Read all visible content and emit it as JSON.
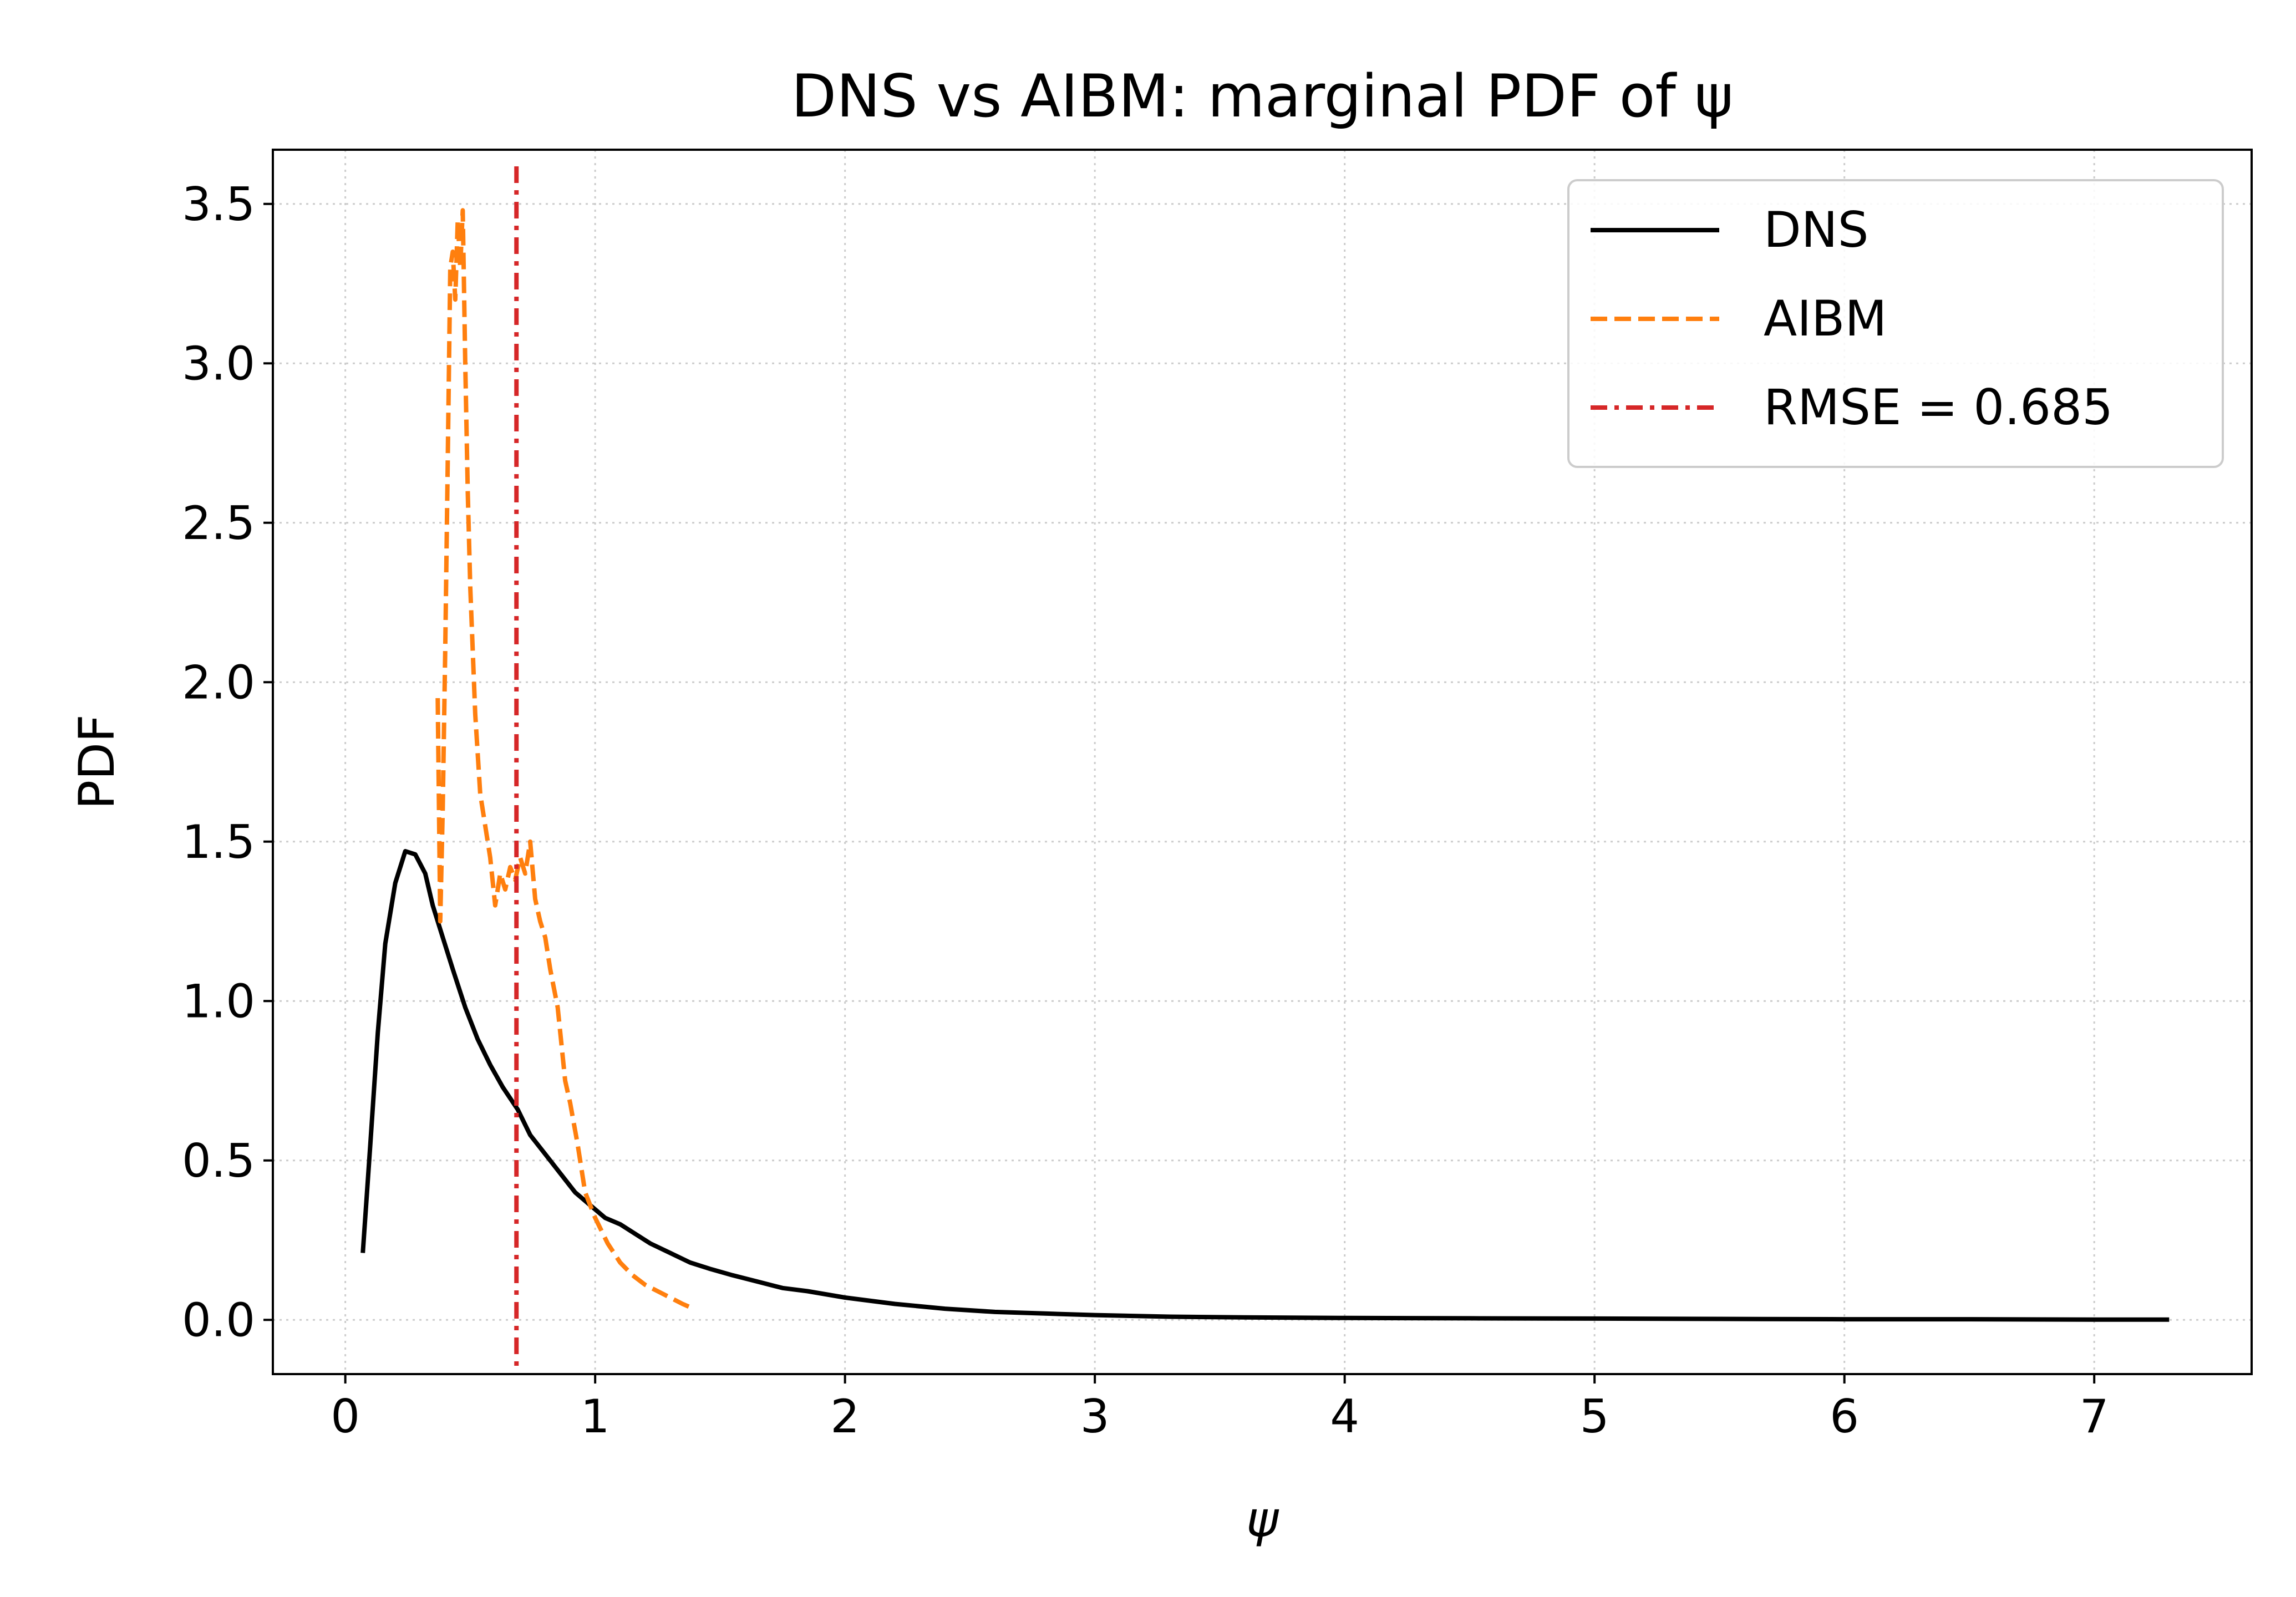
{
  "chart_data": {
    "type": "line",
    "title": "DNS vs AIBM: marginal PDF of ψ",
    "xlabel": "ψ",
    "ylabel": "PDF",
    "xlim": [
      -0.29,
      7.63
    ],
    "ylim": [
      -0.17,
      3.67
    ],
    "xticks": [
      0,
      1,
      2,
      3,
      4,
      5,
      6,
      7
    ],
    "xtick_labels": [
      "0",
      "1",
      "2",
      "3",
      "4",
      "5",
      "6",
      "7"
    ],
    "yticks": [
      0.0,
      0.5,
      1.0,
      1.5,
      2.0,
      2.5,
      3.0,
      3.5
    ],
    "ytick_labels": [
      "0.0",
      "0.5",
      "1.0",
      "1.5",
      "2.0",
      "2.5",
      "3.0",
      "3.5"
    ],
    "grid": true,
    "legend_position": "top-right",
    "series": [
      {
        "name": "DNS",
        "color": "#000000",
        "style": "solid",
        "x": [
          0.07,
          0.1,
          0.13,
          0.16,
          0.2,
          0.24,
          0.28,
          0.32,
          0.35,
          0.39,
          0.43,
          0.48,
          0.53,
          0.58,
          0.63,
          0.69,
          0.74,
          0.8,
          0.86,
          0.92,
          0.98,
          1.04,
          1.1,
          1.16,
          1.22,
          1.3,
          1.38,
          1.46,
          1.55,
          1.65,
          1.75,
          1.85,
          2.0,
          2.2,
          2.4,
          2.6,
          2.8,
          3.0,
          3.3,
          3.6,
          4.0,
          4.5,
          5.0,
          5.5,
          6.0,
          6.5,
          7.0,
          7.3
        ],
        "values": [
          0.21,
          0.55,
          0.9,
          1.18,
          1.37,
          1.47,
          1.46,
          1.4,
          1.3,
          1.2,
          1.1,
          0.98,
          0.88,
          0.8,
          0.73,
          0.66,
          0.58,
          0.52,
          0.46,
          0.4,
          0.36,
          0.32,
          0.3,
          0.27,
          0.24,
          0.21,
          0.18,
          0.16,
          0.14,
          0.12,
          0.1,
          0.09,
          0.07,
          0.05,
          0.035,
          0.025,
          0.02,
          0.015,
          0.01,
          0.008,
          0.006,
          0.005,
          0.004,
          0.003,
          0.002,
          0.002,
          0.001,
          0.001
        ]
      },
      {
        "name": "AIBM",
        "color": "#ff7f0e",
        "style": "dashed",
        "x": [
          0.37,
          0.38,
          0.39,
          0.4,
          0.41,
          0.42,
          0.43,
          0.44,
          0.45,
          0.46,
          0.47,
          0.48,
          0.49,
          0.5,
          0.52,
          0.54,
          0.56,
          0.58,
          0.6,
          0.62,
          0.64,
          0.66,
          0.68,
          0.7,
          0.72,
          0.74,
          0.76,
          0.78,
          0.8,
          0.82,
          0.85,
          0.88,
          0.9,
          0.93,
          0.96,
          1.0,
          1.05,
          1.1,
          1.15,
          1.2,
          1.25,
          1.3,
          1.35,
          1.38
        ],
        "values": [
          1.95,
          1.25,
          1.6,
          2.1,
          2.7,
          3.3,
          3.35,
          3.2,
          3.45,
          3.3,
          3.48,
          3.0,
          2.6,
          2.3,
          1.9,
          1.65,
          1.55,
          1.45,
          1.3,
          1.4,
          1.35,
          1.42,
          1.38,
          1.45,
          1.4,
          1.5,
          1.32,
          1.25,
          1.2,
          1.1,
          0.98,
          0.75,
          0.68,
          0.55,
          0.4,
          0.32,
          0.24,
          0.18,
          0.14,
          0.11,
          0.09,
          0.07,
          0.05,
          0.04
        ]
      },
      {
        "name": "RMSE = 0.685",
        "color": "#d62728",
        "style": "dashdot",
        "vline_x": 0.685
      }
    ]
  }
}
